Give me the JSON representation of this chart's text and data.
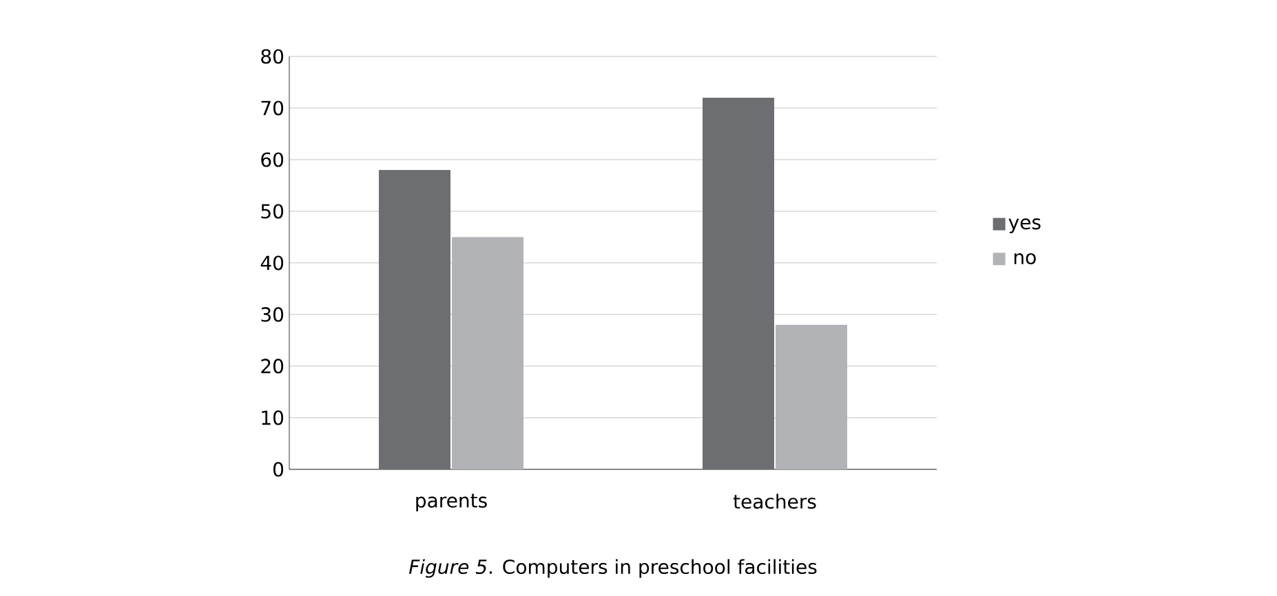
{
  "chart_data": {
    "type": "bar",
    "categories": [
      "parents",
      "teachers"
    ],
    "series": [
      {
        "name": "yes",
        "color": "#6d6e71",
        "values": [
          58,
          72
        ]
      },
      {
        "name": "no",
        "color": "#b1b3b6",
        "values": [
          45,
          28
        ]
      }
    ],
    "ylim": [
      0,
      80
    ],
    "yticks": [
      0,
      10,
      20,
      30,
      40,
      50,
      60,
      70,
      80
    ],
    "grid": "y",
    "legend": "right",
    "annotations": [
      "*Figure 5*. Computers in preschool facilities"
    ]
  }
}
